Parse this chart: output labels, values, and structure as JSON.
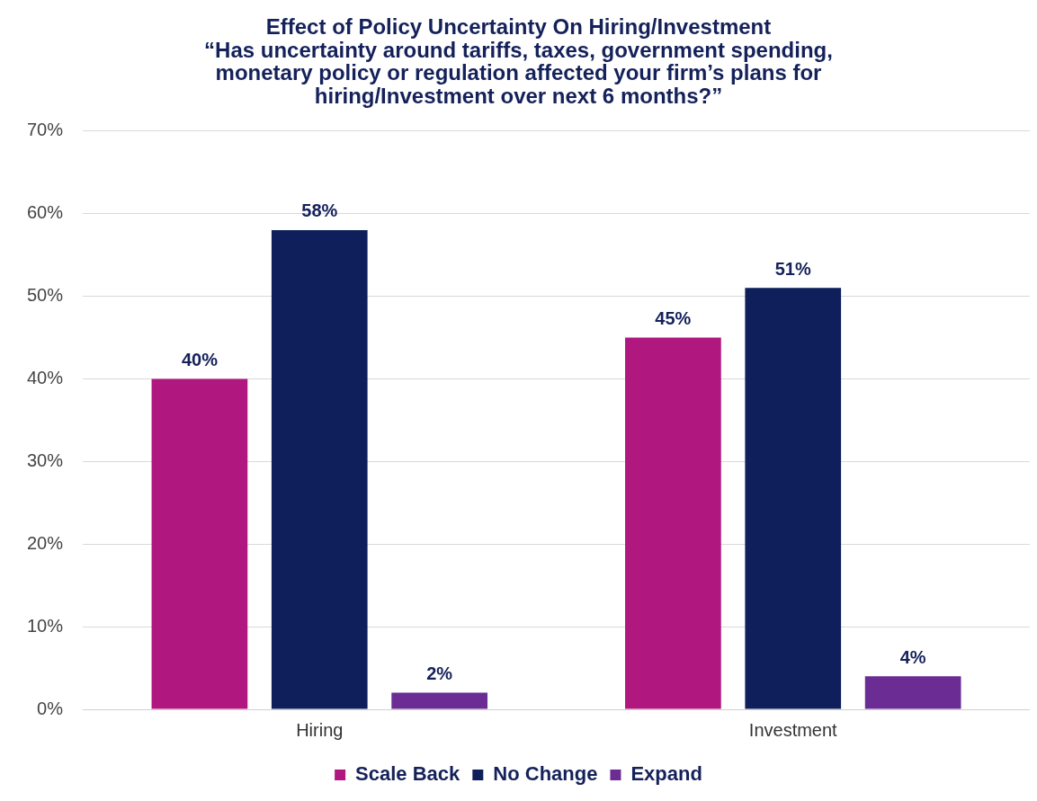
{
  "chart_data": {
    "type": "bar",
    "title": "Effect of Policy Uncertainty On Hiring/Investment\n“Has uncertainty around tariffs, taxes, government spending,\nmonetary policy or regulation affected your firm’s plans for\nhiring/Investment over next 6 months?”",
    "categories": [
      "Hiring",
      "Investment"
    ],
    "series": [
      {
        "name": "Scale Back",
        "color": "#b0177f",
        "values": [
          40,
          45
        ],
        "value_labels": [
          "40%",
          "45%"
        ]
      },
      {
        "name": "No Change",
        "color": "#0e1f5b",
        "values": [
          58,
          51
        ],
        "value_labels": [
          "58%",
          "51%"
        ]
      },
      {
        "name": "Expand",
        "color": "#6b2c94",
        "values": [
          2,
          4
        ],
        "value_labels": [
          "2%",
          "4%"
        ]
      }
    ],
    "ylim": [
      0,
      70
    ],
    "yticks": [
      {
        "value": 0,
        "label": "0%"
      },
      {
        "value": 10,
        "label": "10%"
      },
      {
        "value": 20,
        "label": "20%"
      },
      {
        "value": 30,
        "label": "30%"
      },
      {
        "value": 40,
        "label": "40%"
      },
      {
        "value": 50,
        "label": "50%"
      },
      {
        "value": 60,
        "label": "60%"
      },
      {
        "value": 70,
        "label": "70%"
      }
    ],
    "grid": "y",
    "legend": "bottom"
  }
}
